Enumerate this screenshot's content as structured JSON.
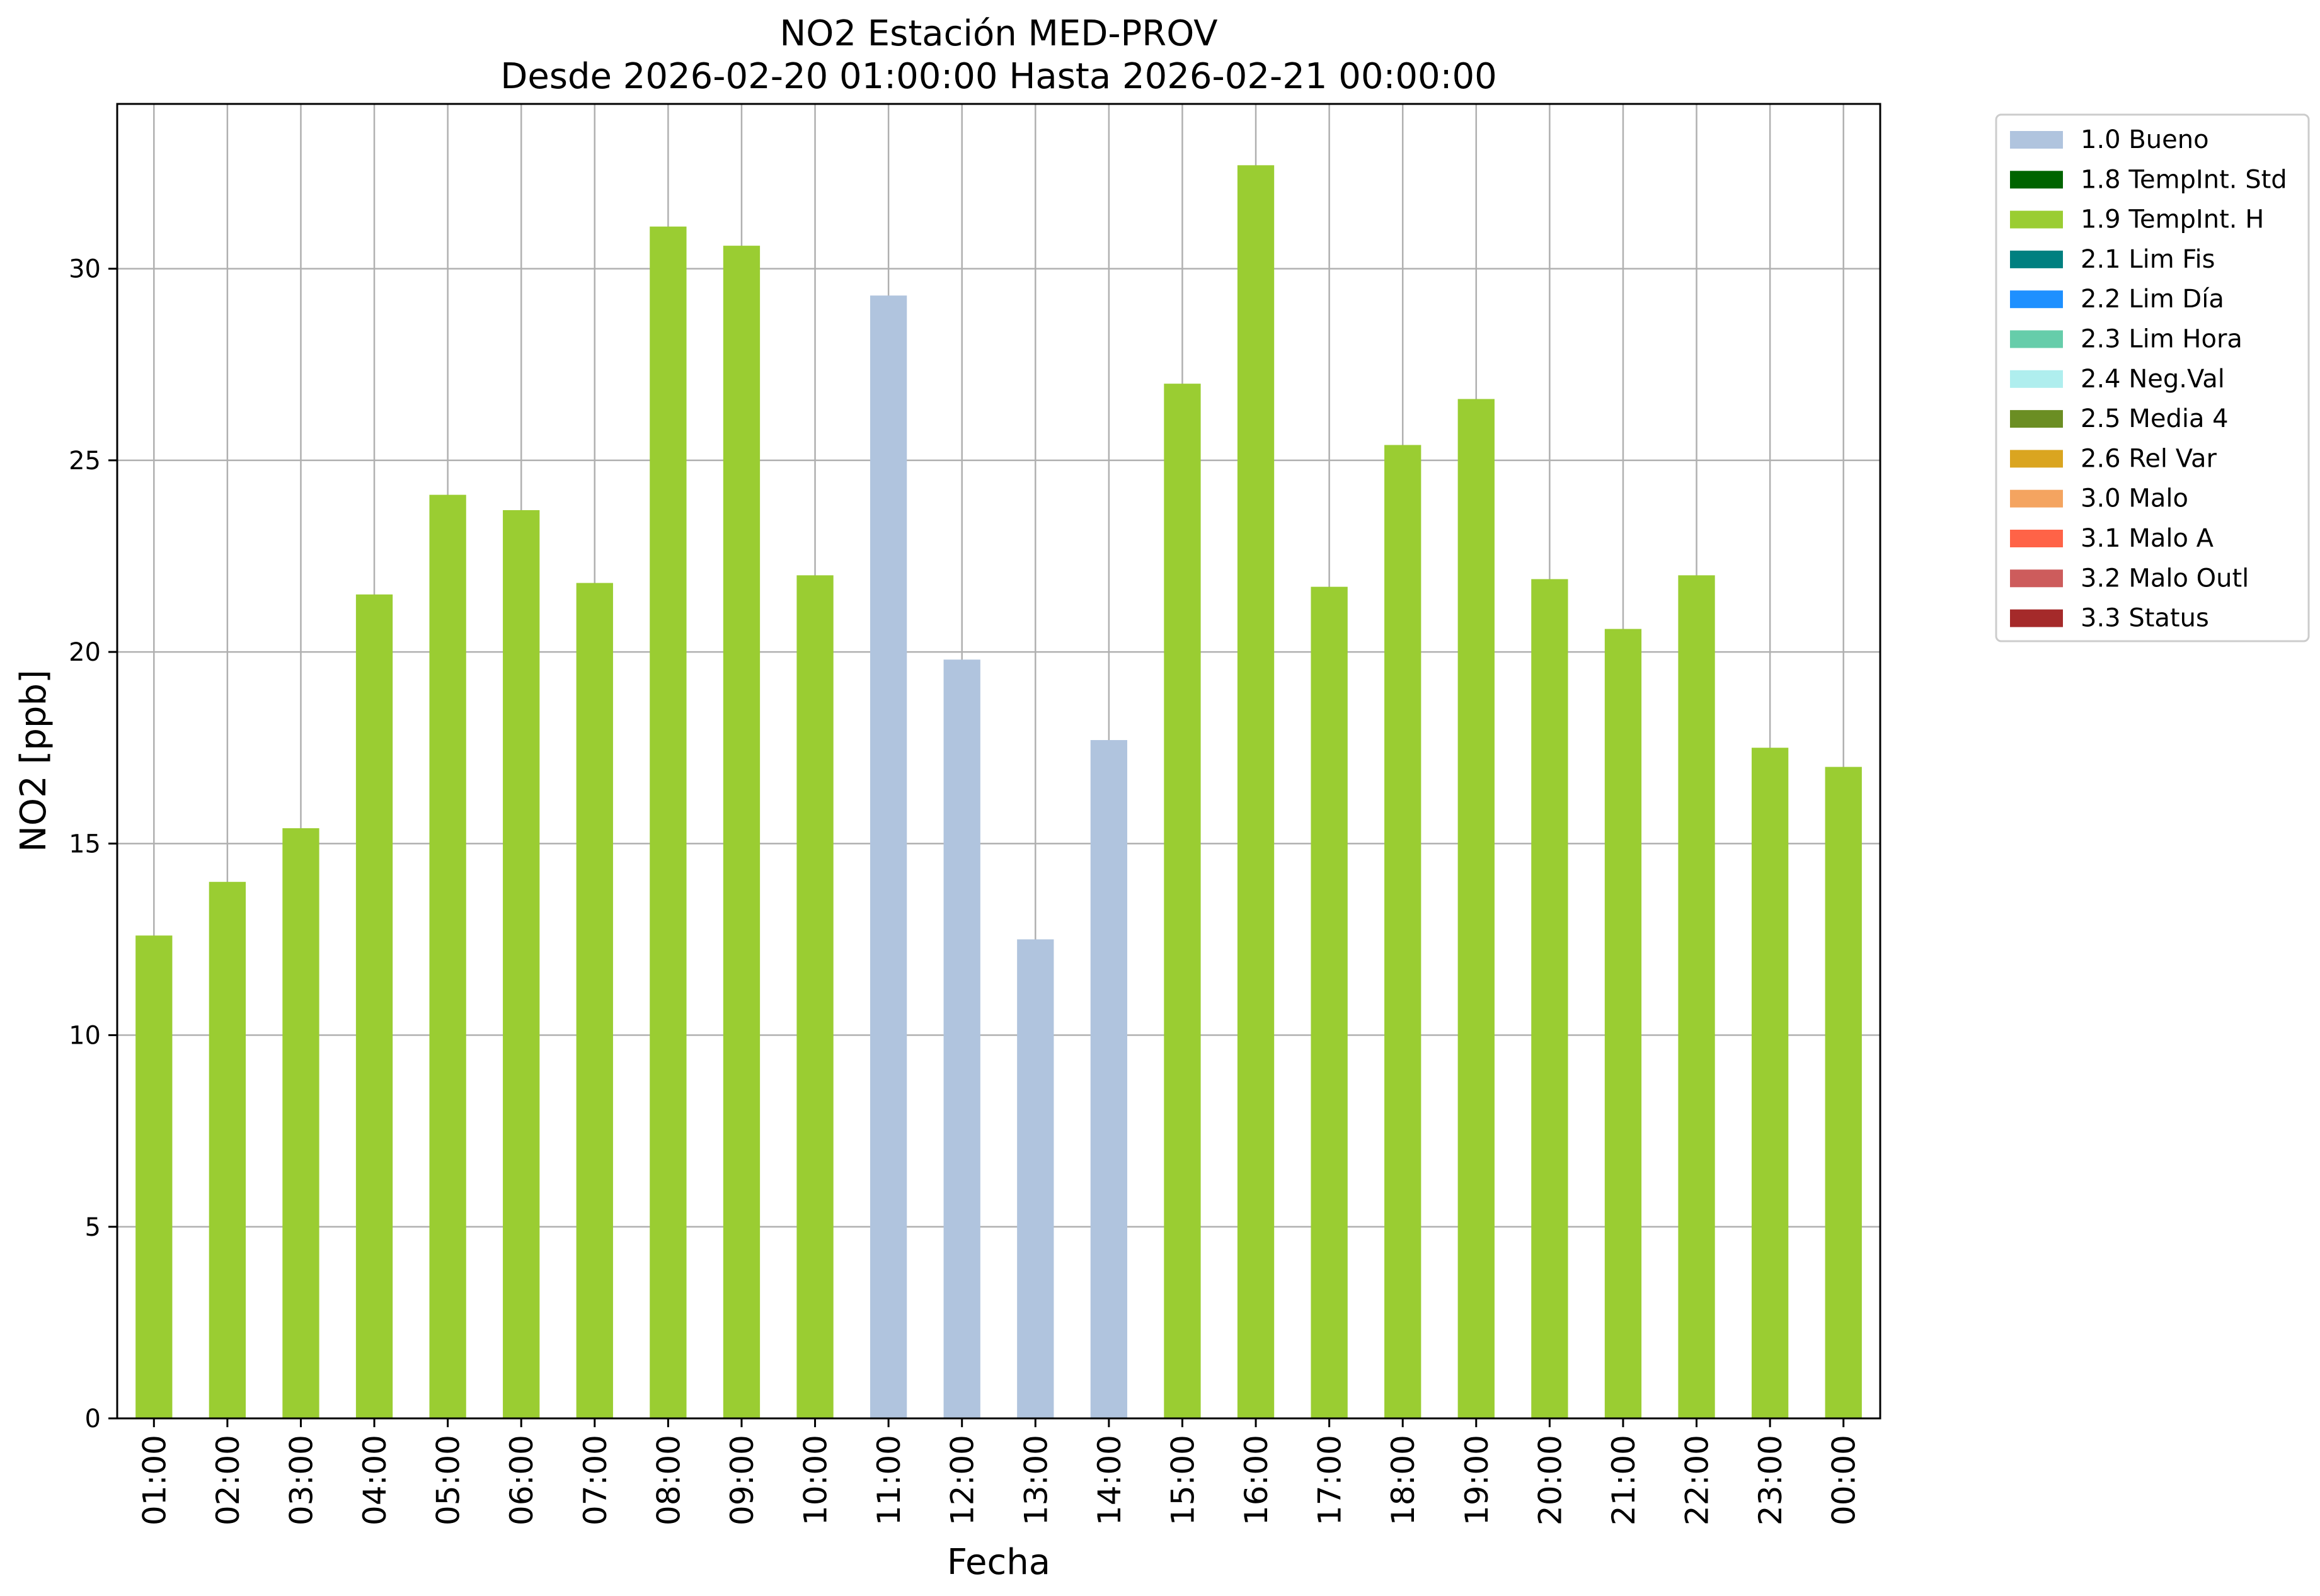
{
  "chart_data": {
    "type": "bar",
    "title": "NO2 Estación MED-PROV",
    "subtitle": "Desde 2026-02-20 01:00:00 Hasta 2026-02-21 00:00:00",
    "xlabel": "Fecha",
    "ylabel": "NO2 [ppb]",
    "ylim": [
      0,
      34.3
    ],
    "yticks": [
      0,
      5,
      10,
      15,
      20,
      25,
      30
    ],
    "grid": true,
    "legend_position": "outside-right-top",
    "categories": [
      "01:00",
      "02:00",
      "03:00",
      "04:00",
      "05:00",
      "06:00",
      "07:00",
      "08:00",
      "09:00",
      "10:00",
      "11:00",
      "12:00",
      "13:00",
      "14:00",
      "15:00",
      "16:00",
      "17:00",
      "18:00",
      "19:00",
      "20:00",
      "21:00",
      "22:00",
      "23:00",
      "00:00"
    ],
    "values": [
      12.6,
      14.0,
      15.4,
      21.5,
      24.1,
      23.7,
      21.8,
      31.1,
      30.6,
      22.0,
      29.3,
      19.8,
      12.5,
      17.7,
      27.0,
      32.7,
      21.7,
      25.4,
      26.6,
      21.9,
      20.6,
      22.0,
      17.5,
      17.0
    ],
    "flags": [
      "1.9",
      "1.9",
      "1.9",
      "1.9",
      "1.9",
      "1.9",
      "1.9",
      "1.9",
      "1.9",
      "1.9",
      "1.0",
      "1.0",
      "1.0",
      "1.0",
      "1.9",
      "1.9",
      "1.9",
      "1.9",
      "1.9",
      "1.9",
      "1.9",
      "1.9",
      "1.9",
      "1.9"
    ],
    "legend": [
      {
        "code": "1.0",
        "label": "1.0 Bueno",
        "color": "#b0c4de"
      },
      {
        "code": "1.8",
        "label": "1.8 TempInt. Std",
        "color": "#006400"
      },
      {
        "code": "1.9",
        "label": "1.9 TempInt. H",
        "color": "#9acd32"
      },
      {
        "code": "2.1",
        "label": "2.1 Lim Fis",
        "color": "#008080"
      },
      {
        "code": "2.2",
        "label": "2.2 Lim Día",
        "color": "#1e90ff"
      },
      {
        "code": "2.3",
        "label": "2.3 Lim Hora",
        "color": "#66cdaa"
      },
      {
        "code": "2.4",
        "label": "2.4 Neg.Val",
        "color": "#afeeee"
      },
      {
        "code": "2.5",
        "label": "2.5 Media 4",
        "color": "#6b8e23"
      },
      {
        "code": "2.6",
        "label": "2.6 Rel Var",
        "color": "#daa520"
      },
      {
        "code": "3.0",
        "label": "3.0 Malo",
        "color": "#f4a460"
      },
      {
        "code": "3.1",
        "label": "3.1 Malo A",
        "color": "#ff6347"
      },
      {
        "code": "3.2",
        "label": "3.2 Malo Outl",
        "color": "#cd5c5c"
      },
      {
        "code": "3.3",
        "label": "3.3 Status",
        "color": "#a52a2a"
      }
    ]
  }
}
